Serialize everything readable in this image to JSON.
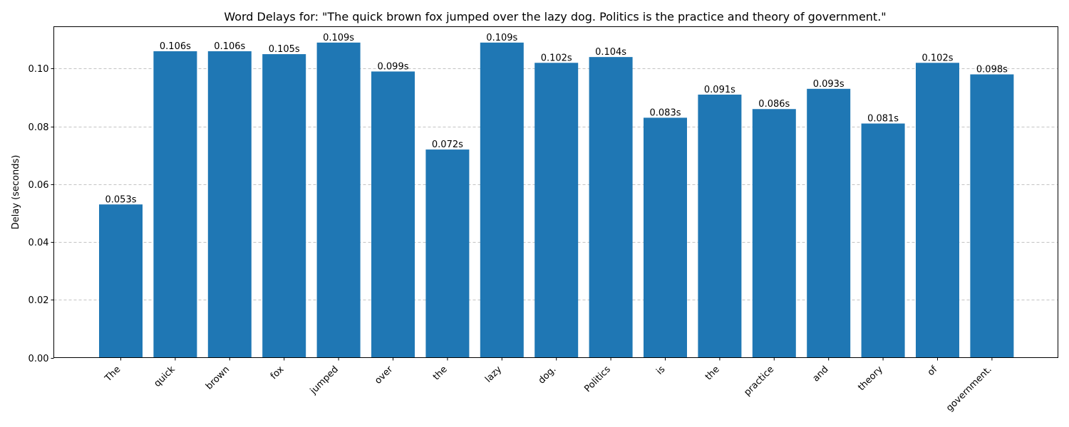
{
  "chart_data": {
    "type": "bar",
    "title": "Word Delays for: \"The quick brown fox jumped over the lazy dog. Politics is the practice and theory of government.\"",
    "xlabel": "",
    "ylabel": "Delay (seconds)",
    "categories": [
      "The",
      "quick",
      "brown",
      "fox",
      "jumped",
      "over",
      "the",
      "lazy",
      "dog.",
      "Politics",
      "is",
      "the",
      "practice",
      "and",
      "theory",
      "of",
      "government."
    ],
    "values": [
      0.053,
      0.106,
      0.106,
      0.105,
      0.109,
      0.099,
      0.072,
      0.109,
      0.102,
      0.104,
      0.083,
      0.091,
      0.086,
      0.093,
      0.081,
      0.102,
      0.098
    ],
    "data_labels": [
      "0.053s",
      "0.106s",
      "0.106s",
      "0.105s",
      "0.109s",
      "0.099s",
      "0.072s",
      "0.109s",
      "0.102s",
      "0.104s",
      "0.083s",
      "0.091s",
      "0.086s",
      "0.093s",
      "0.081s",
      "0.102s",
      "0.098s"
    ],
    "ylim": [
      0,
      0.1145
    ],
    "yticks": [
      0.0,
      0.02,
      0.04,
      0.06,
      0.08,
      0.1
    ],
    "ytick_labels": [
      "0.00",
      "0.02",
      "0.04",
      "0.06",
      "0.08",
      "0.10"
    ],
    "grid": "y-dashed",
    "bar_color": "#1f77b4"
  }
}
